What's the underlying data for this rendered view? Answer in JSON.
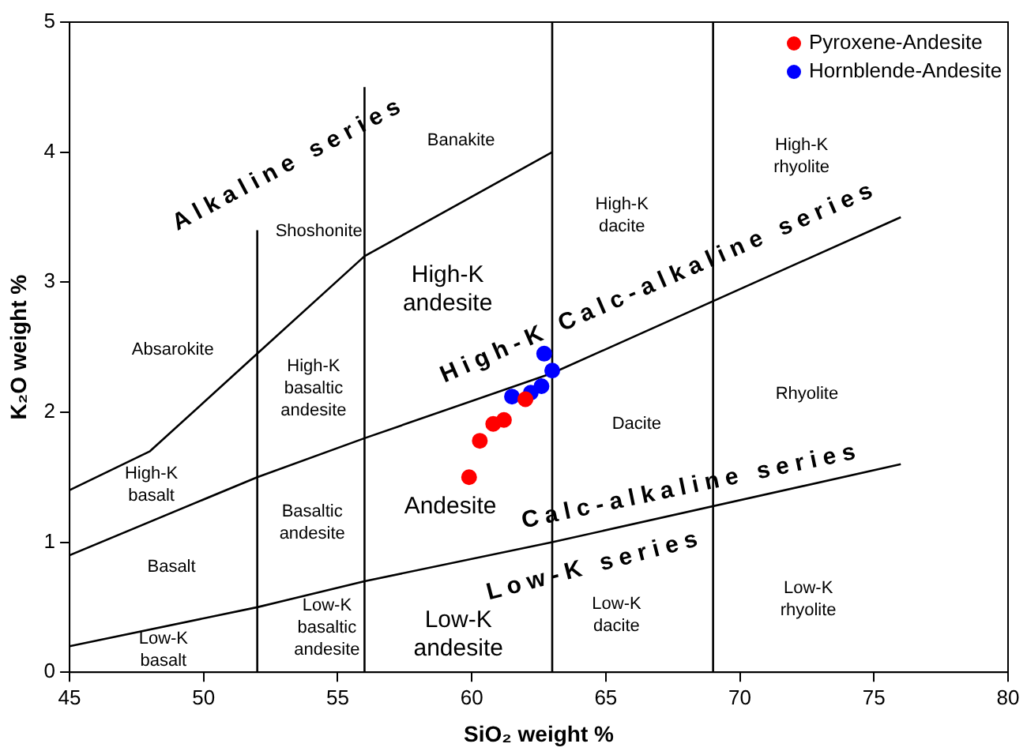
{
  "chart_data": {
    "type": "scatter",
    "xlabel": "SiO₂ weight %",
    "ylabel": "K₂O weight %",
    "xlim": [
      45,
      80
    ],
    "ylim": [
      0,
      5
    ],
    "xticks": [
      45,
      50,
      55,
      60,
      65,
      70,
      75,
      80
    ],
    "yticks": [
      0,
      1,
      2,
      3,
      4,
      5
    ],
    "grid": false,
    "legend": "top right",
    "marker": "circle",
    "series": [
      {
        "name": "Pyroxene-Andesite",
        "color": "#ff0000",
        "x": [
          59.9,
          60.3,
          60.8,
          61.2,
          62.0
        ],
        "values": [
          1.5,
          1.78,
          1.91,
          1.94,
          2.1
        ]
      },
      {
        "name": "Hornblende-Andesite",
        "color": "#0000ff",
        "x": [
          61.5,
          62.2,
          62.6,
          63.0,
          62.7
        ],
        "values": [
          2.12,
          2.15,
          2.2,
          2.32,
          2.45
        ]
      },
      {
        "type": "line",
        "marker": "none",
        "color": "#000000",
        "x": [
          45,
          48,
          52,
          56,
          63
        ],
        "values": [
          1.4,
          1.7,
          2.45,
          3.2,
          4.0
        ]
      },
      {
        "type": "line",
        "marker": "none",
        "color": "#000000",
        "x": [
          45,
          52,
          56,
          63,
          76
        ],
        "values": [
          0.9,
          1.5,
          1.8,
          2.3,
          3.5
        ]
      },
      {
        "type": "line",
        "marker": "none",
        "color": "#000000",
        "x": [
          45,
          52,
          56,
          63,
          76
        ],
        "values": [
          0.2,
          0.5,
          0.7,
          1.0,
          1.6
        ]
      },
      {
        "type": "line",
        "marker": "none",
        "color": "#000000",
        "x": [
          52,
          52
        ],
        "values": [
          0,
          3.4
        ]
      },
      {
        "type": "line",
        "marker": "none",
        "color": "#000000",
        "x": [
          56,
          56
        ],
        "values": [
          0,
          4.5
        ]
      },
      {
        "type": "line",
        "marker": "none",
        "color": "#000000",
        "x": [
          63,
          63
        ],
        "values": [
          0,
          5
        ]
      },
      {
        "type": "line",
        "marker": "none",
        "color": "#000000",
        "x": [
          69,
          69
        ],
        "values": [
          0,
          5
        ]
      }
    ],
    "annotations": [
      "Banakite",
      "Shoshonite",
      "Absarokite",
      "High-K\nandesite",
      "High-K\nbasaltic\nandesite",
      "High-K\nbasalt",
      "Basaltic\nandesite",
      "Basalt",
      "Andesite",
      "Low-K\nbasaltic\nandesite",
      "Low-K\nandesite",
      "Low-K\nbasalt",
      "High-K\ndacite",
      "Dacite",
      "Low-K\ndacite",
      "High-K\nrhyolite",
      "Rhyolite",
      "Low-K\nrhyolite",
      "Alkaline series",
      "High-K Calc-alkaline series",
      "Calc-alkaline series",
      "Low-K series"
    ]
  }
}
